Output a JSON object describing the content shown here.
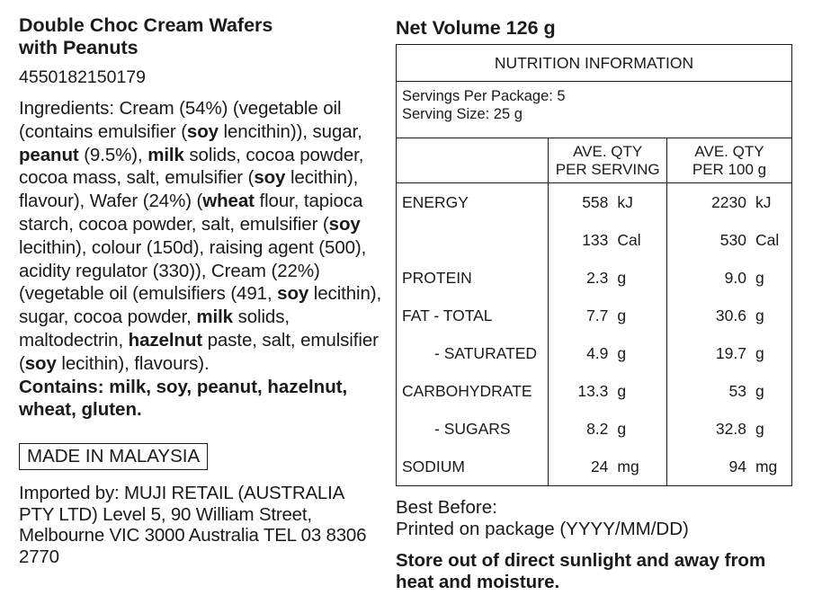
{
  "product": {
    "title_line1": "Double Choc Cream Wafers",
    "title_line2": "with Peanuts",
    "barcode": "4550182150179"
  },
  "ingredients": {
    "label": "Ingredients:",
    "parts": [
      {
        "t": " Cream (54%) (vegetable oil (contains emulsifier (",
        "b": false
      },
      {
        "t": "soy",
        "b": true
      },
      {
        "t": " lencithin)), sugar, ",
        "b": false
      },
      {
        "t": "peanut",
        "b": true
      },
      {
        "t": " (9.5%), ",
        "b": false
      },
      {
        "t": "milk",
        "b": true
      },
      {
        "t": " solids, cocoa powder, cocoa mass, salt, emulsifier (",
        "b": false
      },
      {
        "t": "soy",
        "b": true
      },
      {
        "t": " lecithin), flavour), Wafer (24%) (",
        "b": false
      },
      {
        "t": "wheat",
        "b": true
      },
      {
        "t": " flour, tapioca starch, cocoa powder, salt, emulsifier (",
        "b": false
      },
      {
        "t": "soy",
        "b": true
      },
      {
        "t": " lecithin), colour (150d), raising agent (500), acidity regulator (330)), Cream (22%) (vegetable oil (emulsifiers (491, ",
        "b": false
      },
      {
        "t": "soy",
        "b": true
      },
      {
        "t": " lecithin), sugar, cocoa powder, ",
        "b": false
      },
      {
        "t": "milk",
        "b": true
      },
      {
        "t": " solids, maltodectrin, ",
        "b": false
      },
      {
        "t": "hazelnut",
        "b": true
      },
      {
        "t": " paste, salt, emulsifier (",
        "b": false
      },
      {
        "t": "soy",
        "b": true
      },
      {
        "t": " lecithin), flavours).",
        "b": false
      }
    ],
    "contains": "Contains: milk, soy, peanut, hazelnut, wheat, gluten."
  },
  "origin": "MADE IN MALAYSIA",
  "importer": "Imported by: MUJI RETAIL (AUSTRALIA PTY LTD) Level 5, 90 William Street, Melbourne VIC 3000 Australia TEL 03 8306 2770",
  "net_volume": "Net Volume 126 g",
  "nutrition": {
    "heading": "NUTRITION INFORMATION",
    "servings_per_package": "Servings Per Package: 5",
    "serving_size": "Serving Size: 25 g",
    "col_serving": [
      "AVE. QTY",
      "PER SERVING"
    ],
    "col_100g": [
      "AVE. QTY",
      "PER 100 g"
    ],
    "rows": [
      {
        "label": "ENERGY",
        "indent": false,
        "serving": "558",
        "serving_unit": "kJ",
        "per100": "2230",
        "per100_unit": "kJ"
      },
      {
        "label": "",
        "indent": false,
        "serving": "133",
        "serving_unit": "Cal",
        "per100": "530",
        "per100_unit": "Cal"
      },
      {
        "label": "PROTEIN",
        "indent": false,
        "serving": "2.3",
        "serving_unit": "g",
        "per100": "9.0",
        "per100_unit": "g"
      },
      {
        "label": "FAT - TOTAL",
        "indent": false,
        "serving": "7.7",
        "serving_unit": "g",
        "per100": "30.6",
        "per100_unit": "g"
      },
      {
        "label": "- SATURATED",
        "indent": true,
        "serving": "4.9",
        "serving_unit": "g",
        "per100": "19.7",
        "per100_unit": "g"
      },
      {
        "label": "CARBOHYDRATE",
        "indent": false,
        "serving": "13.3",
        "serving_unit": "g",
        "per100": "53",
        "per100_unit": "g"
      },
      {
        "label": "- SUGARS",
        "indent": true,
        "serving": "8.2",
        "serving_unit": "g",
        "per100": "32.8",
        "per100_unit": "g"
      },
      {
        "label": "SODIUM",
        "indent": false,
        "serving": "24",
        "serving_unit": "mg",
        "per100": "94",
        "per100_unit": "mg"
      }
    ]
  },
  "best_before": {
    "label": "Best Before:",
    "value": "Printed on package (YYYY/MM/DD)"
  },
  "storage": "Store out of direct sunlight and away from heat and moisture."
}
